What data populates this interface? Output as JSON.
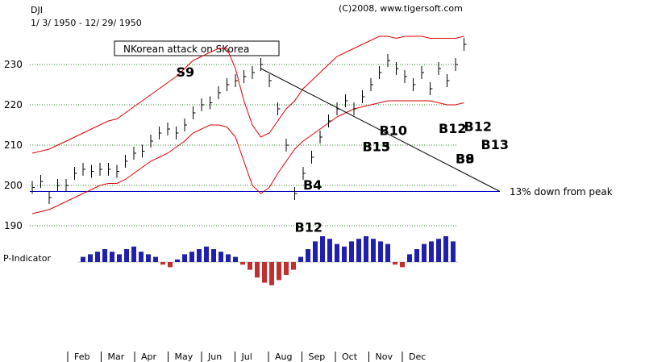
{
  "chart_data": {
    "type": "line",
    "title": "DJI",
    "subtitle": "1/ 3/ 1950 - 12/ 29/ 1950",
    "credit": "(C)2008, www.tigersoft.com",
    "annotation_box": "NKorean attack on SKorea",
    "ylim": [
      185,
      238
    ],
    "yticks": [
      190,
      200,
      210,
      220,
      230
    ],
    "indicator_label": "P-Indicator",
    "horizontal_line": {
      "value": 198.5,
      "label": "13% down from peak"
    },
    "months": [
      "Feb",
      "Mar",
      "Apr",
      "May",
      "Jun",
      "Jul",
      "Aug",
      "Sep",
      "Oct",
      "Nov",
      "Dec"
    ],
    "series": [
      {
        "name": "DJI",
        "x": [
          0,
          1,
          2,
          3,
          4,
          5,
          6,
          7,
          8,
          9,
          10,
          11,
          12,
          13,
          14,
          15,
          16,
          17,
          18,
          19,
          20,
          21,
          22,
          23,
          24,
          25,
          26,
          27,
          28,
          29,
          30,
          31,
          32,
          33,
          34,
          35,
          36,
          37,
          38,
          39,
          40,
          41,
          42,
          43,
          44,
          45,
          46,
          47,
          48,
          49,
          50,
          51
        ],
        "values": [
          199.5,
          201,
          197,
          200,
          200,
          203,
          204,
          203.5,
          204,
          204,
          203.5,
          206,
          208,
          208.5,
          211,
          213,
          214,
          213,
          215,
          218,
          220,
          220.5,
          223,
          225,
          226,
          227,
          228,
          230,
          226,
          219,
          210,
          198,
          203,
          207,
          212,
          216,
          219,
          221,
          219,
          222,
          225,
          228,
          231,
          229,
          227,
          225,
          228,
          224,
          229,
          226,
          230,
          235
        ]
      },
      {
        "name": "Upper band",
        "values": [
          208,
          208.5,
          209,
          210,
          211,
          212,
          213,
          214,
          215,
          216,
          216.5,
          218,
          219.5,
          221,
          222.5,
          224,
          225.5,
          227,
          229,
          231,
          232,
          233,
          234,
          234,
          229,
          221,
          215,
          212,
          213,
          216,
          219,
          221,
          224,
          226,
          228,
          230,
          232,
          233,
          234,
          235,
          236,
          237,
          237,
          236.5,
          237,
          237,
          237,
          236.5,
          236.5,
          236.5,
          236.5,
          237
        ]
      },
      {
        "name": "Lower band",
        "values": [
          193,
          193.5,
          194,
          195,
          196,
          197,
          198,
          199,
          200,
          200.5,
          200.5,
          201.5,
          203,
          204.5,
          206,
          207,
          208,
          209.5,
          211,
          213,
          214,
          215,
          215,
          214.5,
          212,
          206,
          200,
          198,
          199.5,
          203,
          206,
          209,
          211,
          212.5,
          214,
          215.5,
          217,
          218,
          219,
          219.5,
          220,
          220.5,
          221,
          221,
          221,
          221,
          221,
          221,
          220.5,
          220,
          220,
          220.5
        ]
      }
    ],
    "trendline": {
      "from": {
        "x": 27,
        "y": 229
      },
      "to": {
        "x": 70,
        "y": 198.5
      }
    },
    "signals": [
      {
        "label": "S9",
        "x": 17,
        "y": 227
      },
      {
        "label": "B4",
        "x": 32,
        "y": 199
      },
      {
        "label": "B12",
        "x": 31,
        "y": 188.5
      },
      {
        "label": "B10",
        "x": 41,
        "y": 212.5
      },
      {
        "label": "B15",
        "x": 39,
        "y": 208.5
      },
      {
        "label": "B13",
        "x": 39,
        "y": 208.5
      },
      {
        "label": "B12",
        "x": 48,
        "y": 213
      },
      {
        "label": "B12",
        "x": 51,
        "y": 213.5
      },
      {
        "label": "B13",
        "x": 53,
        "y": 209
      },
      {
        "label": "B8",
        "x": 50,
        "y": 205.5
      },
      {
        "label": "B9",
        "x": 50,
        "y": 205.5
      }
    ],
    "indicator": [
      2,
      3,
      4,
      5,
      4,
      3,
      5,
      6,
      4,
      3,
      2,
      -1,
      -2,
      1,
      3,
      4,
      5,
      6,
      5,
      4,
      3,
      2,
      -1,
      -3,
      -6,
      -8,
      -9,
      -7,
      -5,
      -3,
      2,
      5,
      8,
      10,
      9,
      7,
      6,
      8,
      9,
      10,
      9,
      8,
      7,
      -1,
      -2,
      3,
      5,
      7,
      8,
      9,
      10,
      8
    ]
  }
}
